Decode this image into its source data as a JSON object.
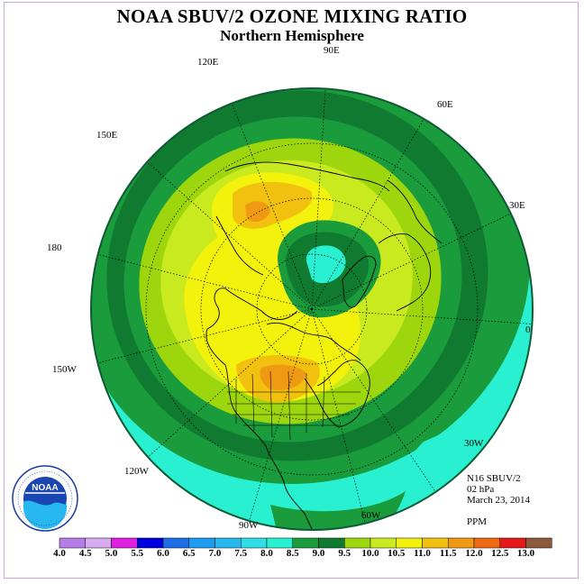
{
  "header": {
    "title": "NOAA SBUV/2 OZONE MIXING RATIO",
    "subtitle": "Northern Hemisphere"
  },
  "longitude_labels": [
    "90E",
    "60E",
    "30E",
    "0",
    "30W",
    "60W",
    "90W",
    "120W",
    "150W",
    "180",
    "150E",
    "120E"
  ],
  "info": {
    "instrument": "N16 SBUV/2",
    "level": "02 hPa",
    "date": "March 23, 2014",
    "units": "PPM"
  },
  "logo": {
    "text": "NOAA",
    "ring_text": "NATIONAL OCEANIC AND ATMOSPHERIC ADMINISTRATION",
    "bottom_text": "U.S. DEPARTMENT OF COMMERCE"
  },
  "colorbar": {
    "labels": [
      "4.0",
      "4.5",
      "5.0",
      "5.5",
      "6.0",
      "6.5",
      "7.0",
      "7.5",
      "8.0",
      "8.5",
      "9.0",
      "9.5",
      "10.0",
      "10.5",
      "11.0",
      "11.5",
      "12.0",
      "12.5",
      "13.0"
    ],
    "colors": [
      "#b57ee6",
      "#d8aaf0",
      "#e020e0",
      "#0000e0",
      "#1e6ee8",
      "#1e9cf0",
      "#28b8f0",
      "#30dce6",
      "#28f0d0",
      "#1a9b3c",
      "#0f7a30",
      "#9ed60e",
      "#c8ea1e",
      "#f2f20c",
      "#f2c00e",
      "#f09a14",
      "#f06a14",
      "#e61818",
      "#8b5a3a"
    ]
  },
  "map_colors": {
    "cyan": "#28f0d0",
    "green_mid": "#1a9b3c",
    "green_dark": "#0f7a30",
    "yellow_green": "#9ed60e",
    "light_yellow_green": "#c8ea1e",
    "yellow": "#f2f20c",
    "orange": "#f2c00e",
    "dark_orange": "#f09a14"
  }
}
